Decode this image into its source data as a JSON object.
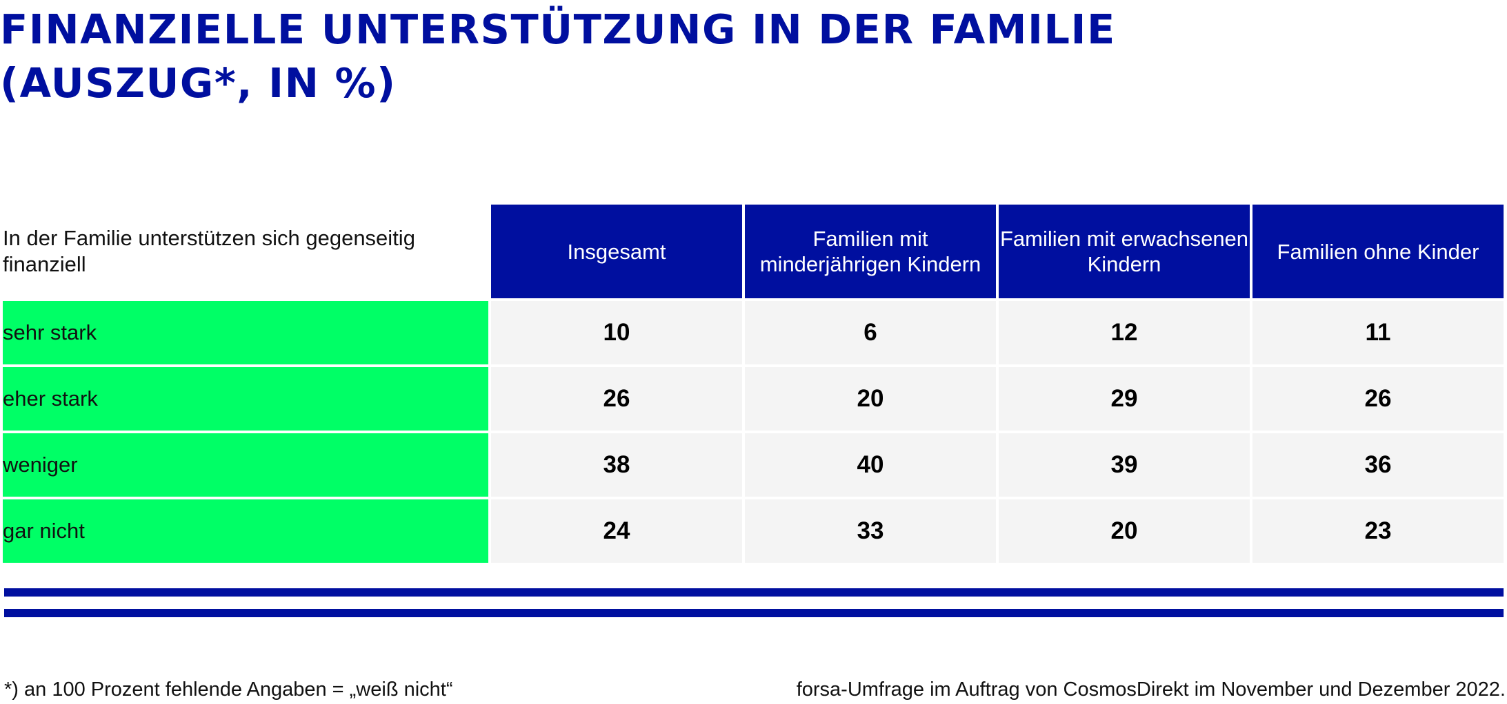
{
  "title": {
    "line1": "FINANZIELLE UNTERSTÜTZUNG IN DER FAMILIE",
    "line2": "(AUSZUG*, IN %)"
  },
  "chart_data": {
    "type": "table",
    "question_label": "In der Familie unterstützen sich gegenseitig finanziell",
    "columns": [
      "Insgesamt",
      "Familien mit minderjährigen Kindern",
      "Familien mit erwachsenen Kindern",
      "Familien ohne Kinder"
    ],
    "rows": [
      {
        "label": "sehr stark",
        "values": [
          "10",
          "6",
          "12",
          "11"
        ]
      },
      {
        "label": "eher stark",
        "values": [
          "26",
          "20",
          "29",
          "26"
        ]
      },
      {
        "label": "weniger",
        "values": [
          "38",
          "40",
          "39",
          "36"
        ]
      },
      {
        "label": "gar nicht",
        "values": [
          "24",
          "33",
          "20",
          "23"
        ]
      }
    ]
  },
  "footer": {
    "note": "*) an 100 Prozent fehlende Angaben = „weiß nicht“",
    "source": "forsa-Umfrage im Auftrag von CosmosDirekt im November und Dezember 2022."
  },
  "colors": {
    "header_blue": "#000f9f",
    "row_label_green": "#00ff66",
    "cell_gray": "#f4f4f4"
  }
}
